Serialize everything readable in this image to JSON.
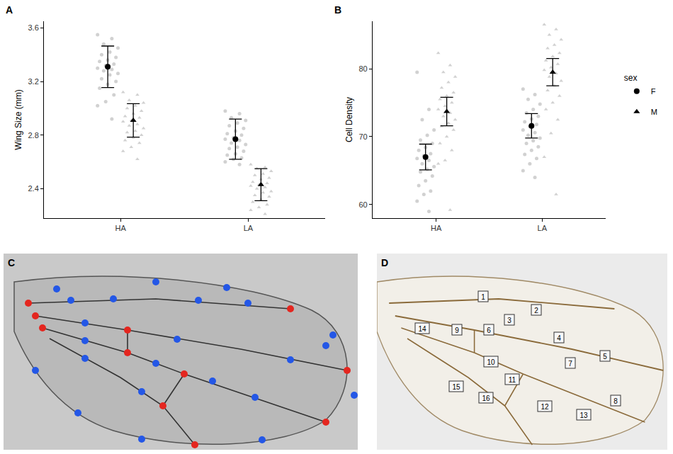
{
  "chart_data": [
    {
      "type": "scatter",
      "panel": "A",
      "y_label": "Wing Size (mm)",
      "categories": [
        "HA",
        "LA"
      ],
      "ylim": [
        2.18,
        3.65
      ],
      "yticks": [
        2.4,
        2.8,
        3.2,
        3.6
      ],
      "grid": false,
      "series": [
        {
          "name": "F",
          "marker": "circle",
          "color": "#000000",
          "values": [
            3.31,
            2.77
          ],
          "errors": [
            0.155,
            0.15
          ],
          "points": [
            [
              3.55,
              3.52,
              3.48,
              3.45,
              3.42,
              3.4,
              3.38,
              3.36,
              3.35,
              3.33,
              3.32,
              3.3,
              3.29,
              3.28,
              3.26,
              3.25,
              3.22,
              3.2,
              3.18,
              3.15,
              3.1,
              3.05,
              3.02,
              2.92
            ],
            [
              2.98,
              2.96,
              2.93,
              2.91,
              2.89,
              2.87,
              2.85,
              2.83,
              2.81,
              2.8,
              2.78,
              2.77,
              2.76,
              2.74,
              2.73,
              2.71,
              2.7,
              2.68,
              2.66,
              2.65,
              2.63,
              2.62,
              2.6,
              2.58
            ]
          ]
        },
        {
          "name": "M",
          "marker": "triangle",
          "color": "#000000",
          "values": [
            2.91,
            2.43
          ],
          "errors": [
            0.125,
            0.12
          ],
          "points": [
            [
              3.12,
              3.1,
              3.06,
              3.04,
              3.02,
              3.0,
              2.98,
              2.96,
              2.94,
              2.93,
              2.91,
              2.9,
              2.88,
              2.87,
              2.85,
              2.83,
              2.82,
              2.8,
              2.78,
              2.76,
              2.74,
              2.71,
              2.68,
              2.62
            ],
            [
              2.58,
              2.56,
              2.55,
              2.53,
              2.51,
              2.5,
              2.48,
              2.47,
              2.45,
              2.44,
              2.43,
              2.42,
              2.41,
              2.4,
              2.38,
              2.37,
              2.35,
              2.34,
              2.32,
              2.3,
              2.28,
              2.26,
              2.24,
              2.21
            ]
          ]
        }
      ]
    },
    {
      "type": "scatter",
      "panel": "B",
      "y_label": "Cell Density",
      "categories": [
        "HA",
        "LA"
      ],
      "ylim": [
        58,
        87
      ],
      "yticks": [
        60,
        70,
        80
      ],
      "grid": false,
      "legend": "right",
      "legend_title": "sex",
      "series": [
        {
          "name": "F",
          "marker": "circle",
          "color": "#000000",
          "values": [
            67.0,
            71.6
          ],
          "errors": [
            1.9,
            1.8
          ],
          "points": [
            [
              79.5,
              74.0,
              72.5,
              71.0,
              70.2,
              69.5,
              69.0,
              68.4,
              68.0,
              67.5,
              67.2,
              66.8,
              66.5,
              66.0,
              65.6,
              65.2,
              64.8,
              64.2,
              63.5,
              62.8,
              62.0,
              61.5,
              60.5,
              59.0
            ],
            [
              77.0,
              76.2,
              75.5,
              74.8,
              74.0,
              73.5,
              73.0,
              72.6,
              72.2,
              71.8,
              71.5,
              71.0,
              70.6,
              70.2,
              69.8,
              69.4,
              69.0,
              68.5,
              68.0,
              67.4,
              66.8,
              66.0,
              65.0,
              64.0
            ]
          ]
        },
        {
          "name": "M",
          "marker": "triangle",
          "color": "#000000",
          "values": [
            73.7,
            79.5
          ],
          "errors": [
            2.1,
            2.0
          ],
          "points": [
            [
              82.3,
              80.5,
              79.5,
              78.8,
              78.0,
              77.2,
              76.5,
              76.0,
              75.5,
              75.0,
              74.5,
              74.0,
              73.5,
              73.0,
              72.5,
              72.0,
              71.5,
              71.0,
              70.0,
              69.0,
              68.0,
              66.5,
              66.0,
              59.2
            ],
            [
              86.5,
              85.8,
              85.0,
              84.3,
              83.5,
              83.0,
              82.3,
              81.8,
              81.2,
              80.7,
              80.2,
              79.8,
              79.3,
              78.8,
              78.2,
              77.5,
              76.8,
              76.0,
              75.0,
              74.0,
              72.5,
              70.5,
              67.0,
              61.5
            ]
          ]
        }
      ]
    }
  ],
  "panels": [
    {
      "panel": "C"
    },
    {
      "panel": "D",
      "labels": [
        "1",
        "2",
        "3",
        "4",
        "5",
        "6",
        "7",
        "8",
        "9",
        "10",
        "11",
        "12",
        "13",
        "14",
        "15",
        "16"
      ]
    }
  ]
}
